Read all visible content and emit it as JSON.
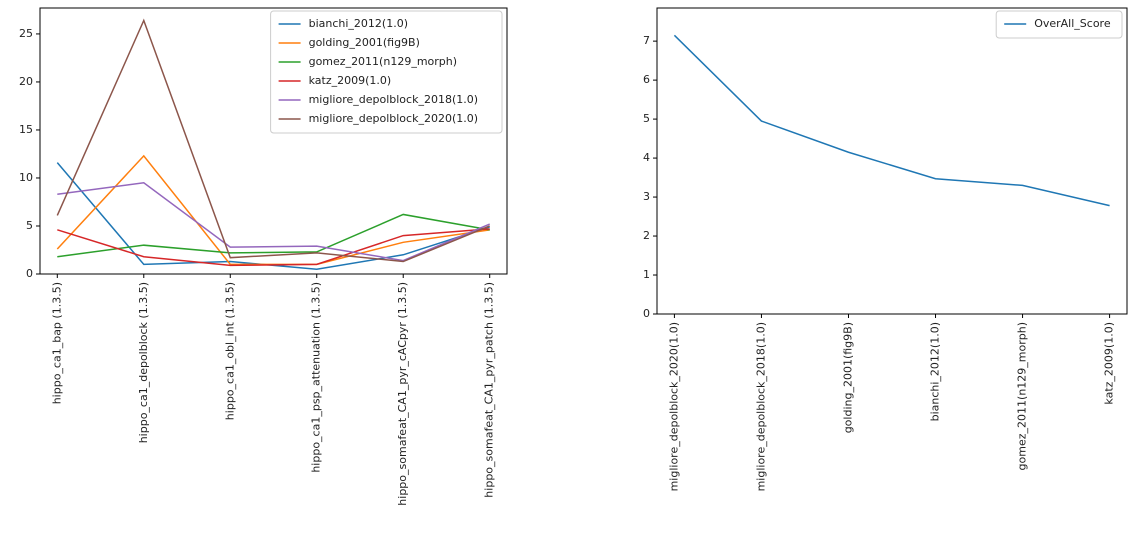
{
  "chart_data": [
    {
      "type": "line",
      "legend": "upper right",
      "grid": false,
      "categories": [
        "hippo_ca1_bap (1.3.5)",
        "hippo_ca1_depolblock (1.3.5)",
        "hippo_ca1_obl_int (1.3.5)",
        "hippo_ca1_psp_attenuation (1.3.5)",
        "hippo_somafeat_CA1_pyr_cACpyr (1.3.5)",
        "hippo_somafeat_CA1_pyr_patch (1.3.5)"
      ],
      "ylim": [
        0,
        27.7
      ],
      "yticks": [
        0,
        5,
        10,
        15,
        20,
        25
      ],
      "series": [
        {
          "name": "bianchi_2012(1.0)",
          "color": "#1f77b4",
          "values": [
            11.6,
            1.0,
            1.3,
            0.5,
            2.0,
            4.9
          ]
        },
        {
          "name": "golding_2001(fig9B)",
          "color": "#ff7f0e",
          "values": [
            2.6,
            12.3,
            1.0,
            1.0,
            3.3,
            4.6
          ]
        },
        {
          "name": "gomez_2011(n129_morph)",
          "color": "#2ca02c",
          "values": [
            1.8,
            3.0,
            2.2,
            2.3,
            6.2,
            4.6
          ]
        },
        {
          "name": "katz_2009(1.0)",
          "color": "#d62728",
          "values": [
            4.6,
            1.8,
            0.9,
            1.0,
            4.0,
            4.7
          ]
        },
        {
          "name": "migliore_depolblock_2018(1.0)",
          "color": "#9467bd",
          "values": [
            8.3,
            9.5,
            2.8,
            2.9,
            1.4,
            5.2
          ]
        },
        {
          "name": "migliore_depolblock_2020(1.0)",
          "color": "#8c564b",
          "values": [
            6.1,
            26.4,
            1.7,
            2.2,
            1.3,
            5.0
          ]
        }
      ]
    },
    {
      "type": "line",
      "legend": "upper right",
      "grid": false,
      "categories": [
        "migliore_depolblock_2020(1.0)",
        "migliore_depolblock_2018(1.0)",
        "golding_2001(fig9B)",
        "bianchi_2012(1.0)",
        "gomez_2011(n129_morph)",
        "katz_2009(1.0)"
      ],
      "ylim": [
        0,
        7.85
      ],
      "yticks": [
        0,
        1,
        2,
        3,
        4,
        5,
        6,
        7
      ],
      "series": [
        {
          "name": "OverAll_Score",
          "color": "#1f77b4",
          "values": [
            7.15,
            4.95,
            4.15,
            3.47,
            3.3,
            2.78
          ]
        }
      ]
    }
  ]
}
